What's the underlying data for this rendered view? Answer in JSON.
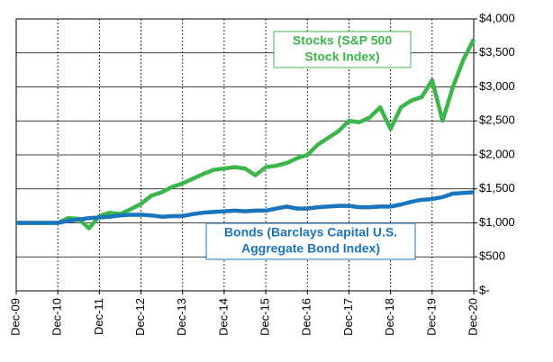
{
  "chart_data": {
    "type": "line",
    "x": [
      0,
      0.25,
      0.5,
      0.75,
      1,
      1.25,
      1.5,
      1.75,
      2,
      2.25,
      2.5,
      2.75,
      3,
      3.25,
      3.5,
      3.75,
      4,
      4.25,
      4.5,
      4.75,
      5,
      5.25,
      5.5,
      5.75,
      6,
      6.25,
      6.5,
      6.75,
      7,
      7.25,
      7.5,
      7.75,
      8,
      8.25,
      8.5,
      8.75,
      9,
      9.25,
      9.5,
      9.75,
      10,
      10.25,
      10.5,
      10.75,
      11
    ],
    "series": [
      {
        "name": "Stocks (S&P 500 Stock Index)",
        "color": "#3cb54a",
        "values": [
          1000,
          1000,
          1000,
          1000,
          1000,
          1070,
          1060,
          920,
          1100,
          1150,
          1130,
          1200,
          1280,
          1400,
          1450,
          1530,
          1580,
          1650,
          1720,
          1780,
          1800,
          1820,
          1800,
          1700,
          1820,
          1840,
          1880,
          1950,
          2000,
          2150,
          2250,
          2350,
          2500,
          2480,
          2550,
          2700,
          2380,
          2700,
          2800,
          2850,
          3100,
          2500,
          3000,
          3400,
          3700
        ]
      },
      {
        "name": "Bonds (Barclays Capital U.S. Aggregate Bond Index)",
        "color": "#1a75bc",
        "values": [
          1000,
          1000,
          1000,
          1000,
          1000,
          1030,
          1050,
          1070,
          1080,
          1090,
          1110,
          1120,
          1120,
          1110,
          1090,
          1100,
          1100,
          1130,
          1150,
          1160,
          1170,
          1180,
          1170,
          1180,
          1180,
          1210,
          1240,
          1210,
          1210,
          1230,
          1240,
          1250,
          1250,
          1230,
          1230,
          1240,
          1240,
          1270,
          1310,
          1340,
          1350,
          1380,
          1430,
          1440,
          1450
        ]
      }
    ],
    "annotations": [
      {
        "lines": [
          "Stocks (S&P 500",
          "Stock Index)"
        ]
      },
      {
        "lines": [
          "Bonds (Barclays  Capital U.S.",
          "Aggregate  Bond Index)"
        ]
      }
    ],
    "xlim": [
      0,
      11
    ],
    "xticks": [
      {
        "value": 0,
        "label": "Dec-09"
      },
      {
        "value": 1,
        "label": "Dec-10"
      },
      {
        "value": 2,
        "label": "Dec-11"
      },
      {
        "value": 3,
        "label": "Dec-12"
      },
      {
        "value": 4,
        "label": "Dec-13"
      },
      {
        "value": 5,
        "label": "Dec-14"
      },
      {
        "value": 6,
        "label": "Dec-15"
      },
      {
        "value": 7,
        "label": "Dec-16"
      },
      {
        "value": 8,
        "label": "Dec-17"
      },
      {
        "value": 9,
        "label": "Dec-18"
      },
      {
        "value": 10,
        "label": "Dec-19"
      },
      {
        "value": 11,
        "label": "Dec-20"
      }
    ],
    "ylim": [
      0,
      4000
    ],
    "yticks": [
      {
        "value": 0,
        "label": "$-"
      },
      {
        "value": 500,
        "label": "$500"
      },
      {
        "value": 1000,
        "label": "$1,000"
      },
      {
        "value": 1500,
        "label": "$1,500"
      },
      {
        "value": 2000,
        "label": "$2,000"
      },
      {
        "value": 2500,
        "label": "$2,500"
      },
      {
        "value": 3000,
        "label": "$3,000"
      },
      {
        "value": 3500,
        "label": "$3,500"
      },
      {
        "value": 4000,
        "label": "$4,000"
      }
    ],
    "grid": true
  }
}
